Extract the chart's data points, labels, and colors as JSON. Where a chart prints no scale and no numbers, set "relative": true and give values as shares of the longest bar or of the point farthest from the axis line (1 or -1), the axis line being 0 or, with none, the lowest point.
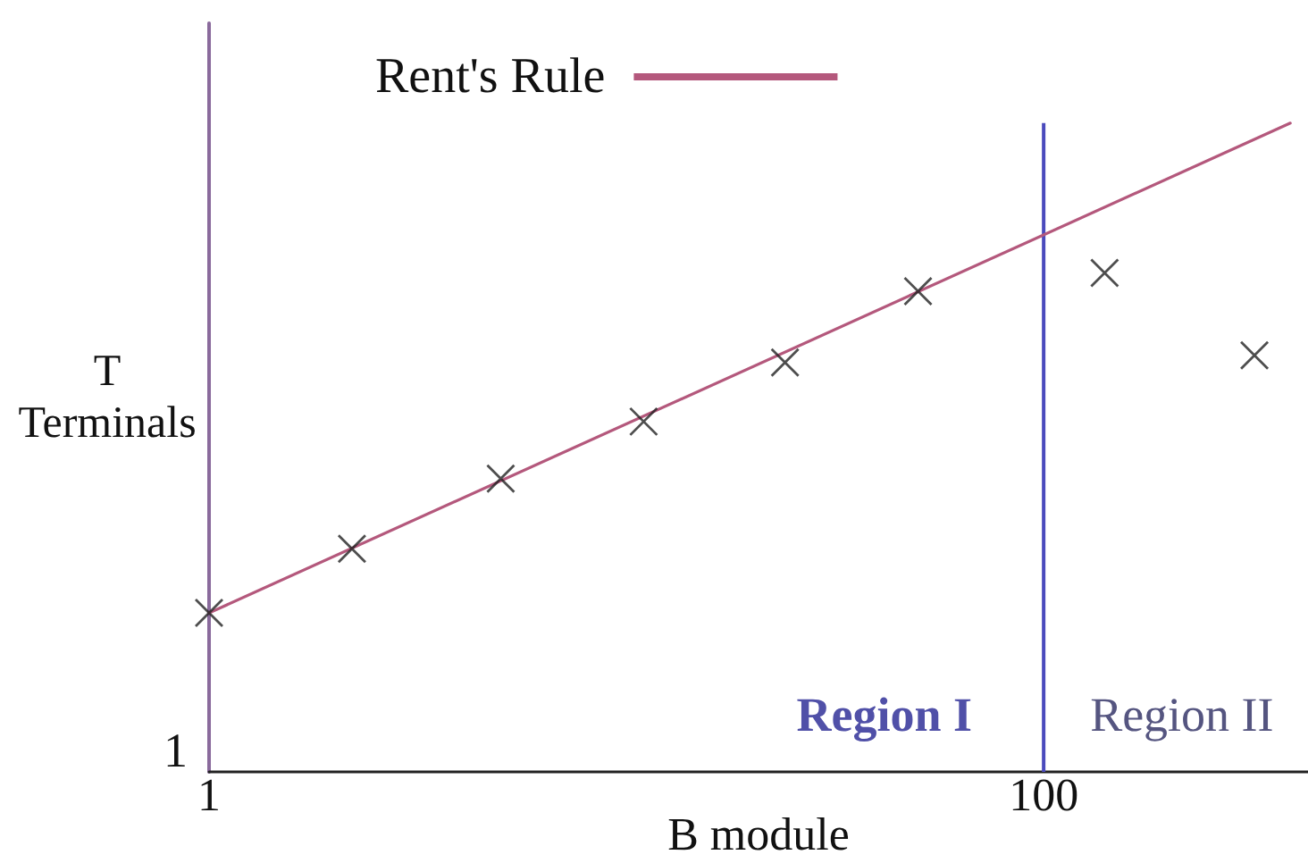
{
  "chart_data": {
    "type": "scatter",
    "xlabel": "B module",
    "ylabel": "T\nTerminals",
    "log": "x",
    "relative": true,
    "xlim": [
      1,
      430
    ],
    "xticks": [
      1,
      100
    ],
    "marker": "cross",
    "legend": "top",
    "series": [
      {
        "name": "Rent's Rule",
        "type": "line",
        "marker": "none",
        "color": "#b4587c",
        "x": [
          1,
          390
        ],
        "values": [
          0.245,
          1
        ]
      },
      {
        "type": "scatter",
        "color": "#222222",
        "x": [
          1,
          2.2,
          5,
          11,
          24,
          50,
          140,
          320
        ],
        "values": [
          0.245,
          0.344,
          0.452,
          0.54,
          0.631,
          0.741,
          0.769,
          0.642
        ]
      }
    ],
    "ref_lines": [
      {
        "axis": "x",
        "value": 100,
        "color": "#4b4bbd"
      }
    ],
    "annotations": [
      "Region I",
      "Region II",
      "1"
    ]
  }
}
